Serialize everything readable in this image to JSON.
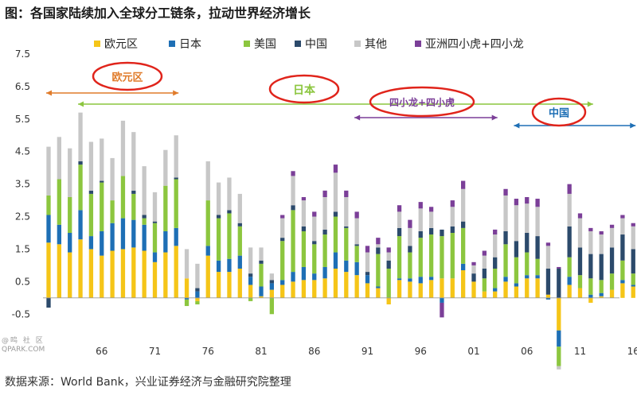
{
  "chart_data": {
    "type": "bar",
    "title": "图：各国家陆续加入全球分工链条，拉动世界经济增长",
    "source": "数据来源：World Bank，兴业证券经济与金融研究院整理",
    "x": [
      1961,
      1962,
      1963,
      1964,
      1965,
      1966,
      1967,
      1968,
      1969,
      1970,
      1971,
      1972,
      1973,
      1974,
      1975,
      1976,
      1977,
      1978,
      1979,
      1980,
      1981,
      1982,
      1983,
      1984,
      1985,
      1986,
      1987,
      1988,
      1989,
      1990,
      1991,
      1992,
      1993,
      1994,
      1995,
      1996,
      1997,
      1998,
      1999,
      2000,
      2001,
      2002,
      2003,
      2004,
      2005,
      2006,
      2007,
      2008,
      2009,
      2010,
      2011,
      2012,
      2013,
      2014,
      2015,
      2016
    ],
    "xticks": [
      "66",
      "71",
      "76",
      "81",
      "86",
      "91",
      "96",
      "01",
      "06",
      "11",
      "16"
    ],
    "ylim": [
      -1.3,
      7.5
    ],
    "yticks": [
      "7.5",
      "6.5",
      "5.5",
      "4.5",
      "3.5",
      "2.5",
      "1.5",
      "0.5",
      "-0.5"
    ],
    "grid": false,
    "legend_position": "top",
    "series": [
      {
        "name": "欧元区",
        "color": "#f5c518",
        "values": [
          1.7,
          1.65,
          1.4,
          1.8,
          1.5,
          1.3,
          1.45,
          1.5,
          1.55,
          1.45,
          1.1,
          1.4,
          1.6,
          0.6,
          -0.1,
          1.3,
          0.8,
          0.8,
          0.9,
          0.4,
          0.05,
          0.25,
          0.4,
          0.5,
          0.55,
          0.55,
          0.6,
          0.9,
          0.8,
          0.7,
          0.45,
          0.3,
          -0.2,
          0.55,
          0.5,
          0.45,
          0.55,
          0.6,
          0.6,
          0.85,
          0.5,
          0.2,
          0.2,
          0.5,
          0.35,
          0.6,
          0.6,
          0.1,
          -1.0,
          0.4,
          0.3,
          -0.15,
          0.05,
          0.25,
          0.45,
          0.35
        ]
      },
      {
        "name": "日本",
        "color": "#1e6fb5",
        "values": [
          0.85,
          0.6,
          0.6,
          0.9,
          0.4,
          0.75,
          0.85,
          0.95,
          0.85,
          0.8,
          0.3,
          0.65,
          0.55,
          -0.05,
          0.2,
          0.3,
          0.35,
          0.4,
          0.4,
          0.25,
          0.3,
          0.2,
          0.15,
          0.3,
          0.4,
          0.2,
          0.35,
          0.5,
          0.35,
          0.4,
          0.25,
          0.05,
          0.0,
          0.05,
          0.1,
          0.2,
          0.1,
          -0.15,
          0.0,
          0.2,
          0.0,
          0.0,
          0.1,
          0.15,
          0.1,
          0.1,
          0.1,
          -0.05,
          -0.5,
          0.25,
          0.0,
          0.1,
          0.1,
          0.0,
          0.1,
          0.05
        ]
      },
      {
        "name": "美国",
        "color": "#8cc63f",
        "values": [
          0.6,
          1.4,
          1.1,
          1.4,
          1.3,
          1.5,
          0.7,
          1.3,
          0.8,
          0.2,
          0.9,
          1.4,
          1.5,
          -0.2,
          -0.1,
          1.4,
          1.3,
          1.4,
          0.9,
          -0.1,
          0.7,
          -0.5,
          1.2,
          1.9,
          1.1,
          0.9,
          1.0,
          1.1,
          1.0,
          0.5,
          0.0,
          1.0,
          0.9,
          1.3,
          0.8,
          1.2,
          1.3,
          1.3,
          1.4,
          1.1,
          0.0,
          0.4,
          0.6,
          1.0,
          0.8,
          0.7,
          0.5,
          0.0,
          -0.6,
          0.6,
          0.4,
          0.5,
          0.4,
          0.5,
          0.6,
          0.35
        ]
      },
      {
        "name": "中国",
        "color": "#2c4a6b",
        "values": [
          -0.3,
          0.0,
          0.0,
          0.1,
          0.1,
          0.05,
          0.0,
          0.0,
          0.1,
          0.1,
          0.05,
          0.0,
          0.05,
          0.0,
          0.1,
          0.0,
          0.1,
          0.1,
          0.1,
          0.1,
          0.1,
          0.1,
          0.1,
          0.15,
          0.15,
          0.1,
          0.15,
          0.15,
          0.05,
          0.05,
          0.1,
          0.2,
          0.25,
          0.25,
          0.2,
          0.2,
          0.2,
          0.2,
          0.2,
          0.2,
          0.25,
          0.3,
          0.35,
          0.4,
          0.5,
          0.6,
          0.7,
          0.8,
          0.9,
          0.95,
          0.85,
          0.75,
          0.8,
          0.8,
          0.8,
          0.75
        ]
      },
      {
        "name": "其他",
        "color": "#c7c7c7",
        "values": [
          1.5,
          1.3,
          1.5,
          1.5,
          1.5,
          1.3,
          1.3,
          1.7,
          1.8,
          1.5,
          0.9,
          1.1,
          1.3,
          0.9,
          0.75,
          1.2,
          1.0,
          1.0,
          0.9,
          0.8,
          0.4,
          0.2,
          0.6,
          0.9,
          0.8,
          0.75,
          1.0,
          1.2,
          0.9,
          0.8,
          0.6,
          0.1,
          0.25,
          0.5,
          0.55,
          0.7,
          0.5,
          0.0,
          0.6,
          1.0,
          0.25,
          0.4,
          0.7,
          1.1,
          1.1,
          0.9,
          0.9,
          0.7,
          -0.1,
          1.0,
          0.9,
          0.7,
          0.6,
          0.6,
          0.5,
          0.7
        ]
      },
      {
        "name": "亚洲四小虎+四小龙",
        "color": "#7b3f98",
        "values": [
          0.0,
          0.0,
          0.0,
          0.0,
          0.0,
          0.0,
          0.0,
          0.0,
          0.0,
          0.0,
          0.0,
          0.0,
          0.0,
          0.0,
          0.0,
          0.0,
          0.0,
          0.0,
          0.0,
          0.0,
          0.0,
          0.0,
          0.1,
          0.15,
          0.1,
          0.15,
          0.2,
          0.25,
          0.2,
          0.2,
          0.2,
          0.2,
          0.15,
          0.2,
          0.25,
          0.2,
          0.15,
          -0.45,
          0.2,
          0.25,
          0.1,
          0.15,
          0.15,
          0.2,
          0.2,
          0.2,
          0.25,
          0.1,
          0.05,
          0.3,
          0.15,
          0.1,
          0.1,
          0.1,
          0.1,
          0.1
        ]
      }
    ],
    "annotations": [
      {
        "label": "欧元区",
        "from": 1961,
        "to": 1973,
        "color": "#e07b2a"
      },
      {
        "label": "日本",
        "from": 1964,
        "to": 2012,
        "color": "#8cc63f"
      },
      {
        "label": "四小龙+四小虎",
        "from": 1990,
        "to": 2003,
        "color": "#7b3f98"
      },
      {
        "label": "中国",
        "from": 2005,
        "to": 2016,
        "color": "#1e6fb5"
      }
    ]
  },
  "watermark": {
    "line1": "@鸣 社 区",
    "line2": "QPARK.COM"
  }
}
